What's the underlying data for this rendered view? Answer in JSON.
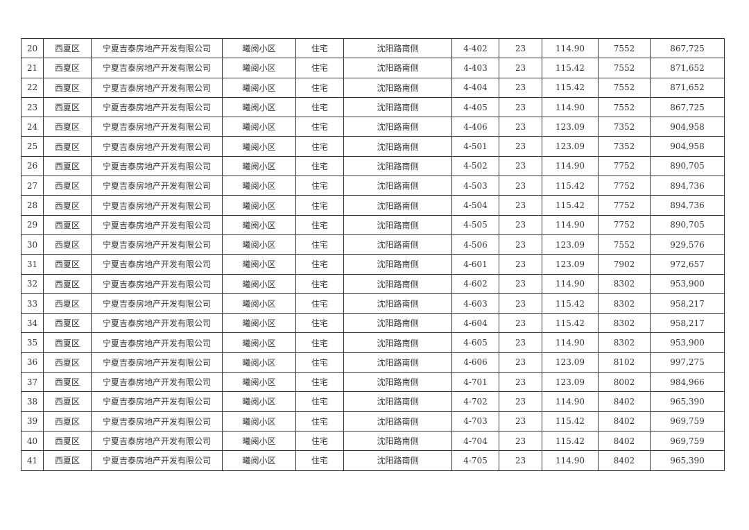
{
  "table": {
    "rows": [
      [
        "20",
        "西夏区",
        "宁夏吉泰房地产开发有限公司",
        "曦阅小区",
        "住宅",
        "沈阳路南侧",
        "4-402",
        "23",
        "114.90",
        "7552",
        "867,725"
      ],
      [
        "21",
        "西夏区",
        "宁夏吉泰房地产开发有限公司",
        "曦阅小区",
        "住宅",
        "沈阳路南侧",
        "4-403",
        "23",
        "115.42",
        "7552",
        "871,652"
      ],
      [
        "22",
        "西夏区",
        "宁夏吉泰房地产开发有限公司",
        "曦阅小区",
        "住宅",
        "沈阳路南侧",
        "4-404",
        "23",
        "115.42",
        "7552",
        "871,652"
      ],
      [
        "23",
        "西夏区",
        "宁夏吉泰房地产开发有限公司",
        "曦阅小区",
        "住宅",
        "沈阳路南侧",
        "4-405",
        "23",
        "114.90",
        "7552",
        "867,725"
      ],
      [
        "24",
        "西夏区",
        "宁夏吉泰房地产开发有限公司",
        "曦阅小区",
        "住宅",
        "沈阳路南侧",
        "4-406",
        "23",
        "123.09",
        "7352",
        "904,958"
      ],
      [
        "25",
        "西夏区",
        "宁夏吉泰房地产开发有限公司",
        "曦阅小区",
        "住宅",
        "沈阳路南侧",
        "4-501",
        "23",
        "123.09",
        "7352",
        "904,958"
      ],
      [
        "26",
        "西夏区",
        "宁夏吉泰房地产开发有限公司",
        "曦阅小区",
        "住宅",
        "沈阳路南侧",
        "4-502",
        "23",
        "114.90",
        "7752",
        "890,705"
      ],
      [
        "27",
        "西夏区",
        "宁夏吉泰房地产开发有限公司",
        "曦阅小区",
        "住宅",
        "沈阳路南侧",
        "4-503",
        "23",
        "115.42",
        "7752",
        "894,736"
      ],
      [
        "28",
        "西夏区",
        "宁夏吉泰房地产开发有限公司",
        "曦阅小区",
        "住宅",
        "沈阳路南侧",
        "4-504",
        "23",
        "115.42",
        "7752",
        "894,736"
      ],
      [
        "29",
        "西夏区",
        "宁夏吉泰房地产开发有限公司",
        "曦阅小区",
        "住宅",
        "沈阳路南侧",
        "4-505",
        "23",
        "114.90",
        "7752",
        "890,705"
      ],
      [
        "30",
        "西夏区",
        "宁夏吉泰房地产开发有限公司",
        "曦阅小区",
        "住宅",
        "沈阳路南侧",
        "4-506",
        "23",
        "123.09",
        "7552",
        "929,576"
      ],
      [
        "31",
        "西夏区",
        "宁夏吉泰房地产开发有限公司",
        "曦阅小区",
        "住宅",
        "沈阳路南侧",
        "4-601",
        "23",
        "123.09",
        "7902",
        "972,657"
      ],
      [
        "32",
        "西夏区",
        "宁夏吉泰房地产开发有限公司",
        "曦阅小区",
        "住宅",
        "沈阳路南侧",
        "4-602",
        "23",
        "114.90",
        "8302",
        "953,900"
      ],
      [
        "33",
        "西夏区",
        "宁夏吉泰房地产开发有限公司",
        "曦阅小区",
        "住宅",
        "沈阳路南侧",
        "4-603",
        "23",
        "115.42",
        "8302",
        "958,217"
      ],
      [
        "34",
        "西夏区",
        "宁夏吉泰房地产开发有限公司",
        "曦阅小区",
        "住宅",
        "沈阳路南侧",
        "4-604",
        "23",
        "115.42",
        "8302",
        "958,217"
      ],
      [
        "35",
        "西夏区",
        "宁夏吉泰房地产开发有限公司",
        "曦阅小区",
        "住宅",
        "沈阳路南侧",
        "4-605",
        "23",
        "114.90",
        "8302",
        "953,900"
      ],
      [
        "36",
        "西夏区",
        "宁夏吉泰房地产开发有限公司",
        "曦阅小区",
        "住宅",
        "沈阳路南侧",
        "4-606",
        "23",
        "123.09",
        "8102",
        "997,275"
      ],
      [
        "37",
        "西夏区",
        "宁夏吉泰房地产开发有限公司",
        "曦阅小区",
        "住宅",
        "沈阳路南侧",
        "4-701",
        "23",
        "123.09",
        "8002",
        "984,966"
      ],
      [
        "38",
        "西夏区",
        "宁夏吉泰房地产开发有限公司",
        "曦阅小区",
        "住宅",
        "沈阳路南侧",
        "4-702",
        "23",
        "114.90",
        "8402",
        "965,390"
      ],
      [
        "39",
        "西夏区",
        "宁夏吉泰房地产开发有限公司",
        "曦阅小区",
        "住宅",
        "沈阳路南侧",
        "4-703",
        "23",
        "115.42",
        "8402",
        "969,759"
      ],
      [
        "40",
        "西夏区",
        "宁夏吉泰房地产开发有限公司",
        "曦阅小区",
        "住宅",
        "沈阳路南侧",
        "4-704",
        "23",
        "115.42",
        "8402",
        "969,759"
      ],
      [
        "41",
        "西夏区",
        "宁夏吉泰房地产开发有限公司",
        "曦阅小区",
        "住宅",
        "沈阳路南侧",
        "4-705",
        "23",
        "114.90",
        "8402",
        "965,390"
      ]
    ]
  }
}
